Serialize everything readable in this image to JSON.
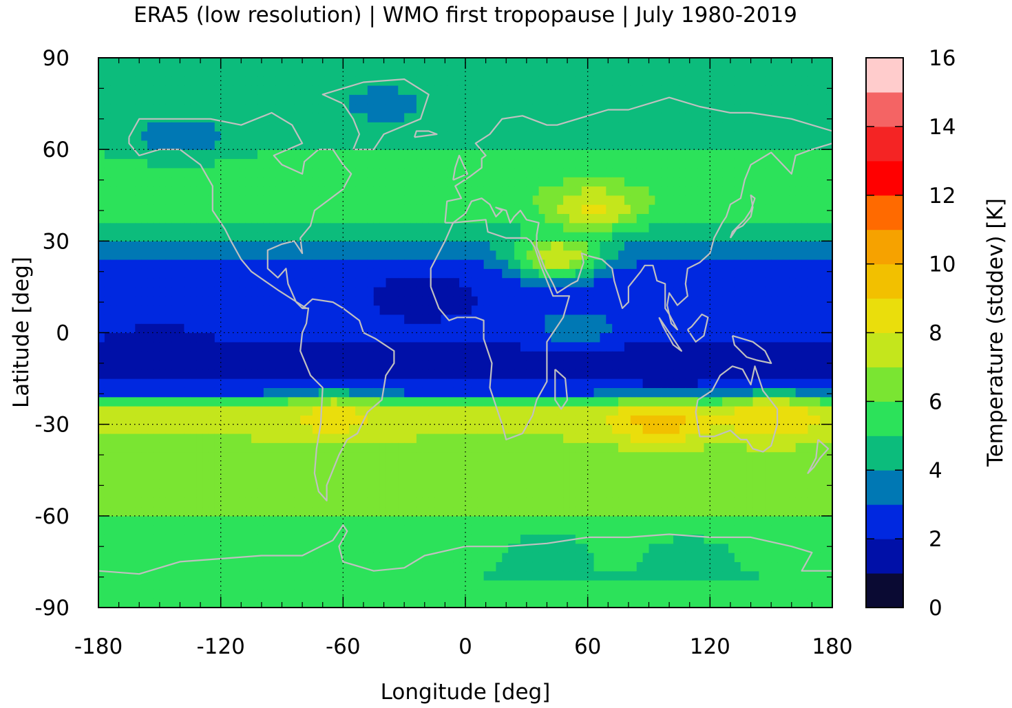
{
  "chart_data": {
    "type": "heatmap",
    "title": "ERA5 (low resolution) | WMO first tropopause | July 1980-2019",
    "xlabel": "Longitude [deg]",
    "ylabel": "Latitude [deg]",
    "colorbar_label": "Temperature (stddev) [K]",
    "xlim": [
      -180,
      180
    ],
    "ylim": [
      -90,
      90
    ],
    "xticks": [
      "-180",
      "-120",
      "-60",
      "0",
      "60",
      "120",
      "180"
    ],
    "yticks": [
      "90",
      "60",
      "30",
      "0",
      "-30",
      "-60",
      "-90"
    ],
    "colorbar_ticks": [
      "0",
      "2",
      "4",
      "6",
      "8",
      "10",
      "12",
      "14",
      "16"
    ],
    "colorbar_range": [
      0,
      16
    ],
    "grid": true,
    "colormap": [
      "#0a0a33",
      "#0010a8",
      "#0028e0",
      "#0078b4",
      "#0cbc7c",
      "#2ce25a",
      "#7ae532",
      "#c4e61c",
      "#eade0c",
      "#f2c000",
      "#f6a200",
      "#ff6a00",
      "#ff0000",
      "#f42424",
      "#f46464",
      "#ffcccc"
    ],
    "latitude_profile": {
      "lat": [
        -90,
        -80,
        -70,
        -60,
        -50,
        -40,
        -32,
        -28,
        -24,
        -20,
        -12,
        -5,
        0,
        10,
        20,
        30,
        38,
        45,
        55,
        65,
        75,
        90
      ],
      "value": [
        5.8,
        5.0,
        5.6,
        6.0,
        6.4,
        6.5,
        7.2,
        7.6,
        6.8,
        3.0,
        1.5,
        1.8,
        2.3,
        2.2,
        2.4,
        3.8,
        5.2,
        5.8,
        5.3,
        4.6,
        4.7,
        4.6
      ]
    },
    "features": [
      {
        "lon": 63,
        "lat": 41,
        "value": 8.3
      },
      {
        "lon": 45,
        "lat": 25,
        "value": 8.0
      },
      {
        "lon": 95,
        "lat": -29,
        "value": 9.6
      },
      {
        "lon": 150,
        "lat": -28,
        "value": 9.0
      },
      {
        "lon": -65,
        "lat": -28,
        "value": 8.4
      },
      {
        "lon": 55,
        "lat": 2,
        "value": 3.6
      },
      {
        "lon": -140,
        "lat": 64,
        "value": 3.2
      },
      {
        "lon": -40,
        "lat": 75,
        "value": 3.5
      },
      {
        "lon": 40,
        "lat": -72,
        "value": 4.2
      },
      {
        "lon": 110,
        "lat": -73,
        "value": 4.2
      },
      {
        "lon": -20,
        "lat": 12,
        "value": 1.3
      },
      {
        "lon": -150,
        "lat": -5,
        "value": 1.4
      },
      {
        "lon": 100,
        "lat": -12,
        "value": 1.3
      }
    ]
  }
}
